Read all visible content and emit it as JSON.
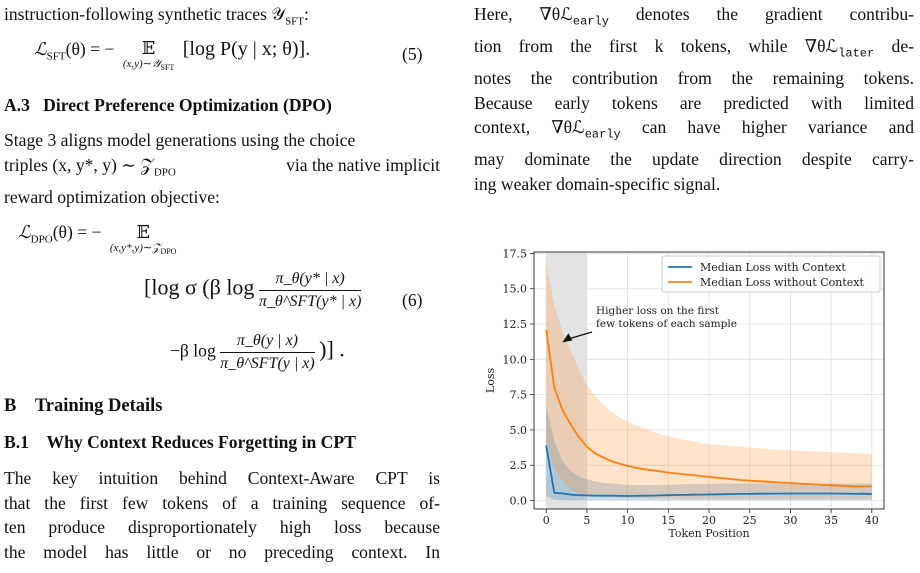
{
  "left": {
    "intro_line": "instruction-following synthetic traces 𝒴",
    "intro_sub": "SFT",
    "intro_end": ":",
    "eq5_lhs": "ℒ",
    "eq5_lhs_sub": "SFT",
    "eq5_mid": "(θ) = −",
    "eq5_E": "𝔼",
    "eq5_E_sub": "(x,y)∼𝒴",
    "eq5_E_subsub": "SFT",
    "eq5_rhs": "[log P(y | x; θ)].",
    "eq5_num": "(5)",
    "section_a3_num": "A.3",
    "section_a3_title": "Direct Preference Optimization (DPO)",
    "para_dpo": [
      "Stage 3 aligns model generations using the choice",
      "triples (x, y*, y) ∼ 𝒵",
      "via the native implicit",
      "reward optimization objective:"
    ],
    "dpo_sub": "DPO",
    "eq6_lhs": "ℒ",
    "eq6_lhs_sub": "DPO",
    "eq6_mid": "(θ) = −",
    "eq6_E": "𝔼",
    "eq6_E_sub": "(x,y*,y)∼𝒵",
    "eq6_E_subsub": "DPO",
    "eq6_line2_start": "[log σ (β log",
    "eq6_frac1_num": "π_θ(y* | x)",
    "eq6_frac1_den": "π_θ^SFT(y* | x)",
    "eq6_num": "(6)",
    "eq6_line3_start": "−β log",
    "eq6_frac2_num": "π_θ(y | x)",
    "eq6_frac2_den": "π_θ^SFT(y | x)",
    "eq6_line3_end": ")] .",
    "section_b_num": "B",
    "section_b_title": "Training Details",
    "section_b1_num": "B.1",
    "section_b1_title": "Why Context Reduces Forgetting in CPT",
    "para_b1": [
      "The key intuition behind Context-Aware CPT is",
      "that the first few tokens of a training sequence of-",
      "ten produce disproportionately high loss because",
      "the model has little or no preceding context.  In"
    ]
  },
  "right": {
    "para": [
      "Here, ∇θℒ",
      "early",
      " denotes the gradient contribu-",
      "tion from the first k tokens, while ∇θℒ",
      "later",
      " de-",
      "notes the contribution from the remaining tokens.",
      "Because early tokens are predicted with limited",
      "context, ∇θℒ",
      "early",
      " can have higher variance and",
      "may dominate the update direction despite carry-",
      "ing weaker domain-specific signal."
    ]
  },
  "chart_data": {
    "type": "line",
    "xlabel": "Token Position",
    "ylabel": "Loss",
    "xlim": [
      -1.5,
      41.5
    ],
    "ylim": [
      -0.6,
      17.6
    ],
    "xticks": [
      0,
      5,
      10,
      15,
      20,
      25,
      30,
      35,
      40
    ],
    "yticks": [
      0.0,
      2.5,
      5.0,
      7.5,
      10.0,
      12.5,
      15.0,
      17.5
    ],
    "ytick_labels": [
      "0.0",
      "2.5",
      "5.0",
      "7.5",
      "10.0",
      "12.5",
      "15.0",
      "17.5"
    ],
    "grid": true,
    "legend_position": "top-right",
    "highlight_region": [
      0,
      5
    ],
    "annotation": [
      "Higher loss on the first",
      "few tokens of each sample"
    ],
    "annotation_arrow_target": [
      1.5,
      11.2
    ],
    "x": [
      0,
      1,
      2,
      3,
      4,
      5,
      6,
      7,
      8,
      9,
      10,
      11,
      12,
      13,
      14,
      15,
      16,
      17,
      18,
      19,
      20,
      21,
      22,
      23,
      24,
      25,
      26,
      27,
      28,
      29,
      30,
      31,
      32,
      33,
      34,
      35,
      36,
      37,
      38,
      39,
      40
    ],
    "series": [
      {
        "name": "Median Loss with Context",
        "color": "#1f77b4",
        "values": [
          3.9,
          0.55,
          0.5,
          0.42,
          0.38,
          0.36,
          0.34,
          0.35,
          0.34,
          0.33,
          0.32,
          0.33,
          0.34,
          0.35,
          0.36,
          0.38,
          0.39,
          0.4,
          0.41,
          0.42,
          0.43,
          0.44,
          0.45,
          0.46,
          0.47,
          0.47,
          0.48,
          0.48,
          0.49,
          0.49,
          0.5,
          0.5,
          0.5,
          0.5,
          0.5,
          0.5,
          0.49,
          0.48,
          0.47,
          0.48,
          0.45
        ],
        "band_upper": [
          6.7,
          4.2,
          2.8,
          2.1,
          1.7,
          1.5,
          1.35,
          1.25,
          1.2,
          1.15,
          1.1,
          1.1,
          1.1,
          1.1,
          1.1,
          1.12,
          1.13,
          1.15,
          1.16,
          1.17,
          1.18,
          1.19,
          1.2,
          1.2,
          1.2,
          1.2,
          1.2,
          1.2,
          1.2,
          1.2,
          1.2,
          1.2,
          1.2,
          1.2,
          1.2,
          1.2,
          1.2,
          1.2,
          1.2,
          1.2,
          1.2
        ],
        "band_lower": [
          0.3,
          0.05,
          0.02,
          0.02,
          0.02,
          0.02,
          0.02,
          0.02,
          0.02,
          0.02,
          0.02,
          0.02,
          0.02,
          0.02,
          0.02,
          0.02,
          0.02,
          0.02,
          0.02,
          0.02,
          0.02,
          0.02,
          0.02,
          0.02,
          0.02,
          0.02,
          0.02,
          0.02,
          0.02,
          0.02,
          0.02,
          0.02,
          0.02,
          0.02,
          0.02,
          0.02,
          0.02,
          0.02,
          0.02,
          0.02,
          0.02
        ]
      },
      {
        "name": "Median Loss without Context",
        "color": "#ff7f0e",
        "values": [
          12.1,
          8.0,
          6.4,
          5.4,
          4.5,
          3.8,
          3.35,
          3.05,
          2.8,
          2.6,
          2.45,
          2.32,
          2.22,
          2.14,
          2.06,
          1.98,
          1.92,
          1.85,
          1.8,
          1.74,
          1.68,
          1.62,
          1.56,
          1.5,
          1.45,
          1.41,
          1.37,
          1.33,
          1.3,
          1.27,
          1.24,
          1.2,
          1.17,
          1.14,
          1.11,
          1.08,
          1.05,
          1.03,
          1.01,
          1.0,
          0.99
        ],
        "band_upper": [
          16.8,
          13.8,
          12.0,
          10.6,
          9.3,
          8.2,
          7.4,
          6.8,
          6.3,
          5.9,
          5.6,
          5.35,
          5.1,
          4.9,
          4.7,
          4.55,
          4.4,
          4.3,
          4.2,
          4.1,
          4.0,
          3.95,
          3.9,
          3.85,
          3.8,
          3.75,
          3.7,
          3.65,
          3.6,
          3.58,
          3.55,
          3.52,
          3.5,
          3.48,
          3.45,
          3.42,
          3.4,
          3.38,
          3.35,
          3.33,
          3.3
        ],
        "band_lower": [
          4.1,
          2.2,
          1.4,
          0.8,
          0.5,
          0.35,
          0.3,
          0.25,
          0.22,
          0.2,
          0.18,
          0.17,
          0.16,
          0.15,
          0.15,
          0.15,
          0.14,
          0.14,
          0.14,
          0.14,
          0.13,
          0.13,
          0.13,
          0.13,
          0.13,
          0.13,
          0.13,
          0.13,
          0.13,
          0.13,
          0.13,
          0.13,
          0.13,
          0.13,
          0.13,
          0.13,
          0.13,
          0.13,
          0.13,
          0.13,
          0.13
        ]
      }
    ]
  }
}
